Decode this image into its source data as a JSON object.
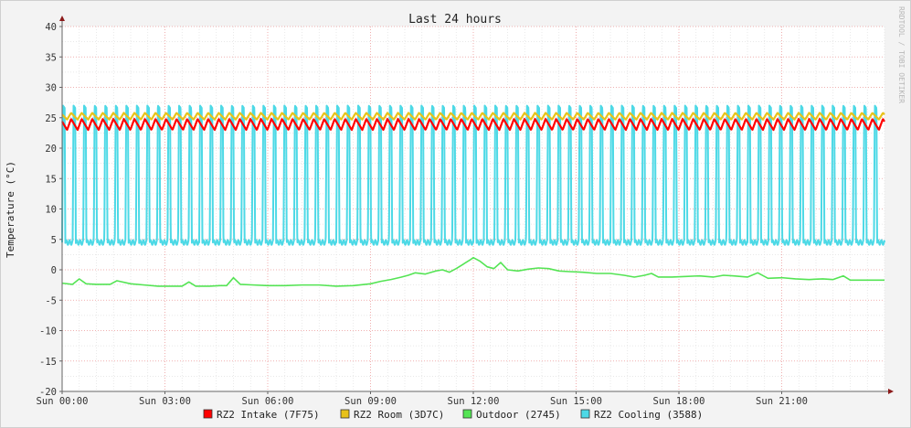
{
  "chart_data": {
    "type": "line",
    "title": "Last 24 hours",
    "ylabel": "Temperature (°C)",
    "watermark": "RRDTOOL / TOBI OETIKER",
    "ylim": [
      -20,
      40
    ],
    "yticks": [
      40,
      35,
      30,
      25,
      20,
      15,
      10,
      5,
      0,
      -5,
      -10,
      -15,
      -20
    ],
    "xlim_hours": [
      0,
      24
    ],
    "xticks": [
      {
        "hour": 0,
        "label": "Sun 00:00"
      },
      {
        "hour": 3,
        "label": "Sun 03:00"
      },
      {
        "hour": 6,
        "label": "Sun 06:00"
      },
      {
        "hour": 9,
        "label": "Sun 09:00"
      },
      {
        "hour": 12,
        "label": "Sun 12:00"
      },
      {
        "hour": 15,
        "label": "Sun 15:00"
      },
      {
        "hour": 18,
        "label": "Sun 18:00"
      },
      {
        "hour": 21,
        "label": "Sun 21:00"
      }
    ],
    "grid": true,
    "legend_position": "bottom",
    "series": [
      {
        "name": "RZ2 Intake (7F75)",
        "color": "#ff0000",
        "pattern": "sawtooth",
        "low": 23.0,
        "high": 24.8,
        "cycles": 78
      },
      {
        "name": "RZ2 Room (3D7C)",
        "color": "#e8c21a",
        "pattern": "sawtooth",
        "low": 24.7,
        "high": 25.8,
        "cycles": 78
      },
      {
        "name": "Outdoor (2745)",
        "color": "#54e454",
        "pattern": "points",
        "points": [
          [
            0.0,
            -2.2
          ],
          [
            0.3,
            -2.4
          ],
          [
            0.5,
            -1.5
          ],
          [
            0.7,
            -2.3
          ],
          [
            1.0,
            -2.4
          ],
          [
            1.4,
            -2.4
          ],
          [
            1.6,
            -1.8
          ],
          [
            2.0,
            -2.3
          ],
          [
            2.4,
            -2.5
          ],
          [
            2.8,
            -2.7
          ],
          [
            3.2,
            -2.7
          ],
          [
            3.5,
            -2.7
          ],
          [
            3.7,
            -2.0
          ],
          [
            3.9,
            -2.7
          ],
          [
            4.3,
            -2.7
          ],
          [
            4.6,
            -2.6
          ],
          [
            4.8,
            -2.6
          ],
          [
            5.0,
            -1.3
          ],
          [
            5.2,
            -2.4
          ],
          [
            5.6,
            -2.5
          ],
          [
            6.0,
            -2.6
          ],
          [
            6.5,
            -2.6
          ],
          [
            7.0,
            -2.5
          ],
          [
            7.5,
            -2.5
          ],
          [
            8.0,
            -2.7
          ],
          [
            8.5,
            -2.6
          ],
          [
            9.0,
            -2.3
          ],
          [
            9.3,
            -1.9
          ],
          [
            9.6,
            -1.6
          ],
          [
            9.9,
            -1.2
          ],
          [
            10.1,
            -0.9
          ],
          [
            10.3,
            -0.5
          ],
          [
            10.6,
            -0.7
          ],
          [
            10.9,
            -0.2
          ],
          [
            11.1,
            0.0
          ],
          [
            11.3,
            -0.4
          ],
          [
            11.5,
            0.2
          ],
          [
            11.7,
            0.9
          ],
          [
            11.9,
            1.6
          ],
          [
            12.0,
            2.0
          ],
          [
            12.2,
            1.4
          ],
          [
            12.4,
            0.5
          ],
          [
            12.6,
            0.2
          ],
          [
            12.8,
            1.2
          ],
          [
            13.0,
            0.0
          ],
          [
            13.3,
            -0.2
          ],
          [
            13.6,
            0.1
          ],
          [
            13.9,
            0.3
          ],
          [
            14.2,
            0.2
          ],
          [
            14.5,
            -0.2
          ],
          [
            14.8,
            -0.3
          ],
          [
            15.2,
            -0.4
          ],
          [
            15.6,
            -0.6
          ],
          [
            16.0,
            -0.6
          ],
          [
            16.4,
            -0.9
          ],
          [
            16.7,
            -1.2
          ],
          [
            17.0,
            -0.9
          ],
          [
            17.2,
            -0.6
          ],
          [
            17.4,
            -1.2
          ],
          [
            17.8,
            -1.2
          ],
          [
            18.2,
            -1.1
          ],
          [
            18.6,
            -1.0
          ],
          [
            19.0,
            -1.2
          ],
          [
            19.3,
            -0.9
          ],
          [
            19.6,
            -1.0
          ],
          [
            20.0,
            -1.2
          ],
          [
            20.3,
            -0.5
          ],
          [
            20.6,
            -1.4
          ],
          [
            21.0,
            -1.3
          ],
          [
            21.4,
            -1.5
          ],
          [
            21.8,
            -1.6
          ],
          [
            22.2,
            -1.5
          ],
          [
            22.5,
            -1.6
          ],
          [
            22.8,
            -1.0
          ],
          [
            23.0,
            -1.7
          ],
          [
            23.5,
            -1.7
          ],
          [
            24.0,
            -1.7
          ]
        ]
      },
      {
        "name": "RZ2 Cooling (3588)",
        "color": "#4dd9e6",
        "pattern": "square",
        "low": 4.5,
        "high": 27.0,
        "cycles": 78
      }
    ]
  }
}
